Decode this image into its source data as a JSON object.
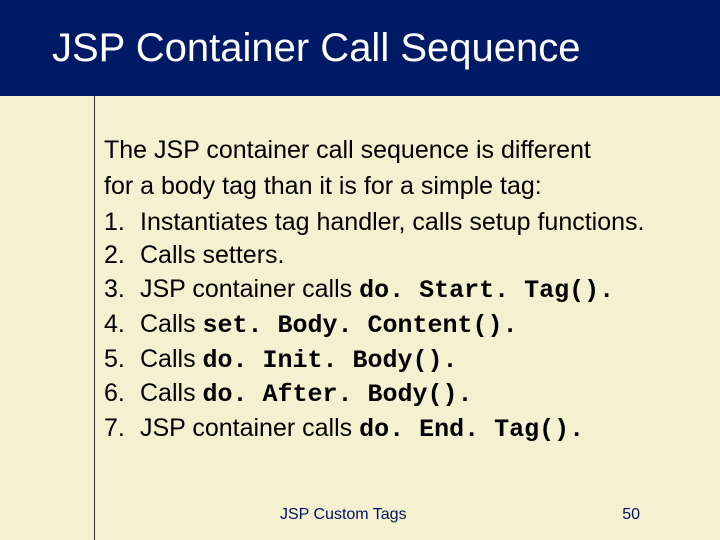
{
  "colors": {
    "header_bg": "#001a66",
    "header_text": "#ffffff",
    "body_bg": "#f5f0d0",
    "text": "#000000",
    "rule": "#333333",
    "footer_text": "#001060"
  },
  "header": {
    "title": "JSP Container Call Sequence"
  },
  "intro": {
    "line1": "The JSP container call sequence is different",
    "line2": "for a body tag than it is for a simple tag:"
  },
  "steps": [
    {
      "text": "Instantiates tag handler, calls setup functions."
    },
    {
      "prefix": "Calls setters."
    },
    {
      "prefix": "JSP container calls ",
      "code": "do. Start. Tag(). "
    },
    {
      "prefix": "Calls ",
      "code": "set. Body. Content(). "
    },
    {
      "prefix": "Calls ",
      "code": "do. Init. Body(). "
    },
    {
      "prefix": "Calls ",
      "code": "do. After. Body(). "
    },
    {
      "prefix": "JSP container calls ",
      "code": "do. End. Tag(). "
    }
  ],
  "footer": {
    "label": "JSP Custom Tags",
    "page": "50"
  }
}
